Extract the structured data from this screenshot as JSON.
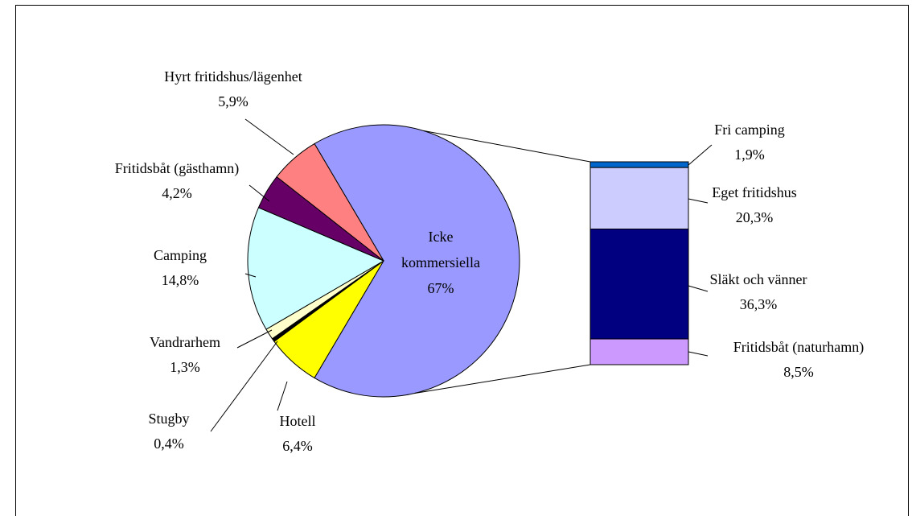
{
  "chart_data": {
    "type": "bar_of_pie",
    "pie": {
      "categories": [
        "Icke kommersiella",
        "Hotell",
        "Stugby",
        "Vandrarhem",
        "Camping",
        "Fritidsbåt (gästhamn)",
        "Hyrt fritidshus/lägenhet"
      ],
      "values": [
        67,
        6.4,
        0.4,
        1.3,
        14.8,
        4.2,
        5.9
      ],
      "value_labels": [
        "67%",
        "6,4%",
        "0,4%",
        "1,3%",
        "14,8%",
        "4,2%",
        "5,9%"
      ],
      "colors": [
        "#9999ff",
        "#ffff00",
        "#000000",
        "#ffffcc",
        "#ccffff",
        "#660066",
        "#ff8080"
      ]
    },
    "bar": {
      "categories": [
        "Fri camping",
        "Eget fritidshus",
        "Släkt och vänner",
        "Fritidsbåt (naturhamn)"
      ],
      "values": [
        1.9,
        20.3,
        36.3,
        8.5
      ],
      "value_labels": [
        "1,9%",
        "20,3%",
        "36,3%",
        "8,5%"
      ],
      "colors": [
        "#0066cc",
        "#ccccff",
        "#000080",
        "#cc99ff"
      ]
    }
  }
}
